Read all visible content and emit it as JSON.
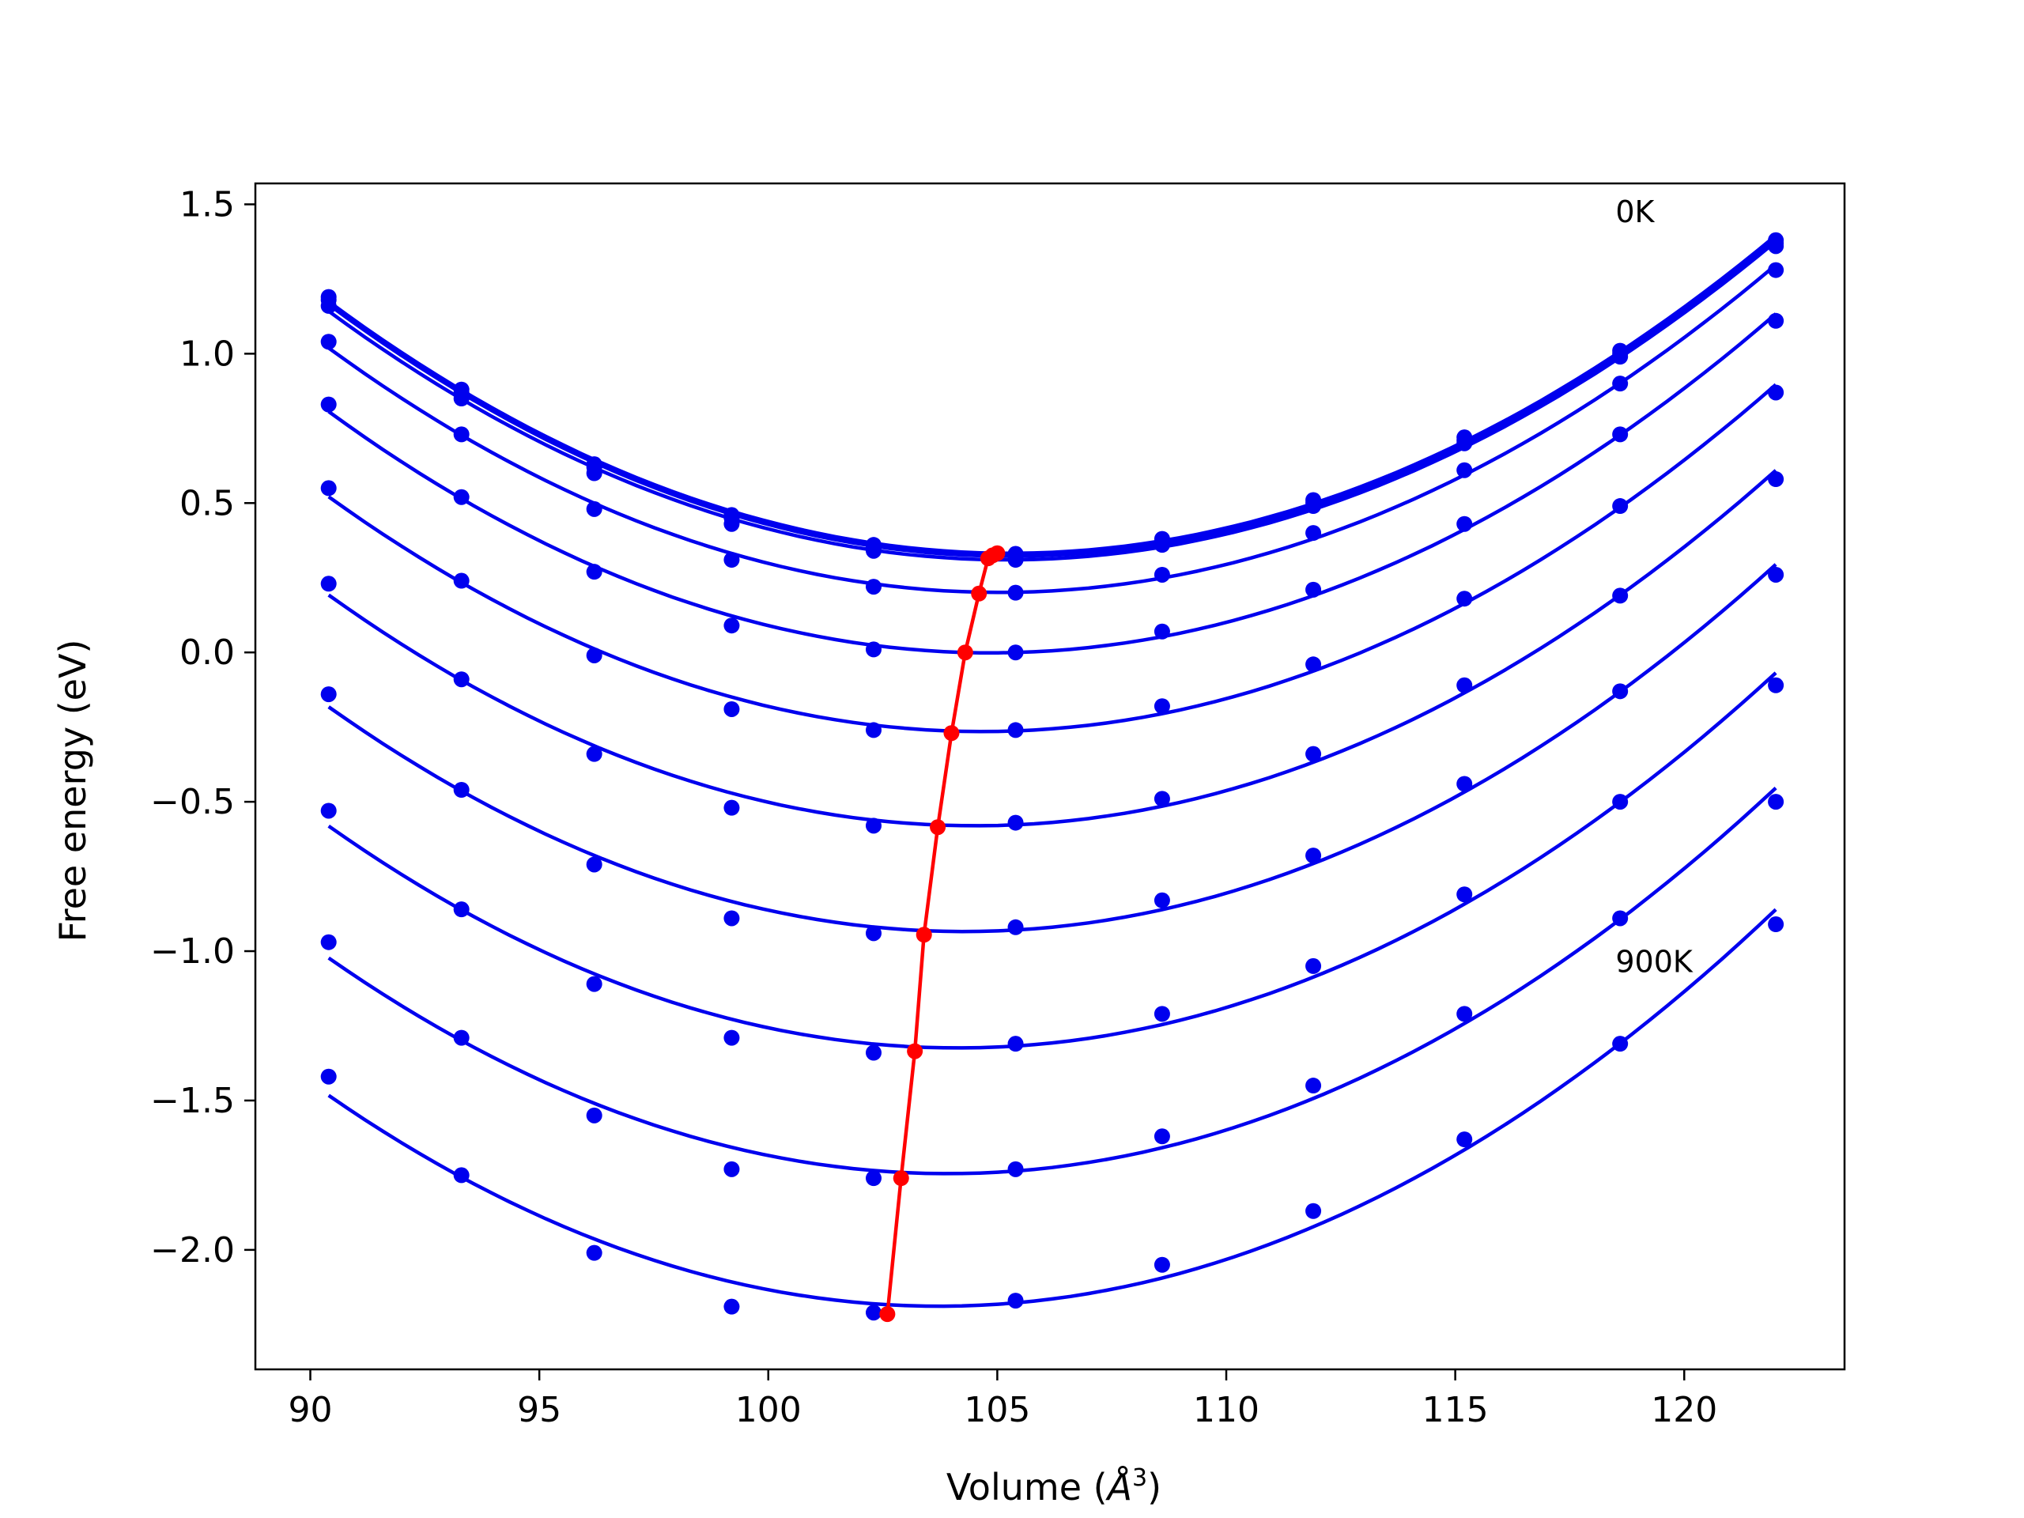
{
  "chart_data": {
    "type": "line",
    "xlabel_main": "Volume (",
    "xlabel_unit": "Å",
    "xlabel_exp": "3",
    "xlabel_close": ")",
    "ylabel": "Free energy (eV)",
    "xlim": [
      88.8,
      123.5
    ],
    "ylim": [
      -2.4,
      1.57
    ],
    "xticks": [
      90,
      95,
      100,
      105,
      110,
      115,
      120
    ],
    "yticks": [
      1.5,
      1.0,
      0.5,
      0.0,
      -0.5,
      -1.0,
      -1.5,
      -2.0
    ],
    "ytick_labels": [
      "1.5",
      "1.0",
      "0.5",
      "0.0",
      "−0.5",
      "−1.0",
      "−1.5",
      "−2.0"
    ],
    "grid": false,
    "annotations": [
      {
        "text": "0K",
        "x": 118.5,
        "y": 1.44
      },
      {
        "text": "900K",
        "x": 118.5,
        "y": -1.07
      }
    ],
    "series_color": "#0000ee",
    "min_line_color": "#ff0000",
    "x": [
      90.4,
      93.3,
      96.2,
      99.2,
      102.3,
      105.4,
      108.6,
      111.9,
      115.2,
      118.6,
      122.0
    ],
    "series": [
      {
        "points": [
          1.19,
          0.88,
          0.63,
          0.46,
          0.36,
          0.33,
          0.38,
          0.51,
          0.72,
          1.01,
          1.38
        ],
        "min": [
          105.0,
          0.332
        ]
      },
      {
        "points": [
          1.18,
          0.87,
          0.62,
          0.45,
          0.35,
          0.32,
          0.37,
          0.5,
          0.71,
          1.0,
          1.37
        ],
        "min": [
          104.9,
          0.325
        ]
      },
      {
        "points": [
          1.16,
          0.85,
          0.6,
          0.43,
          0.34,
          0.31,
          0.36,
          0.49,
          0.7,
          0.99,
          1.36
        ],
        "min": [
          104.8,
          0.315
        ]
      },
      {
        "points": [
          1.04,
          0.73,
          0.48,
          0.31,
          0.22,
          0.2,
          0.26,
          0.4,
          0.61,
          0.9,
          1.28
        ],
        "min": [
          104.6,
          0.197
        ]
      },
      {
        "points": [
          0.83,
          0.52,
          0.27,
          0.09,
          0.01,
          0.0,
          0.07,
          0.21,
          0.43,
          0.73,
          1.11
        ],
        "min": [
          104.3,
          0.0
        ]
      },
      {
        "points": [
          0.55,
          0.24,
          -0.01,
          -0.19,
          -0.26,
          -0.26,
          -0.18,
          -0.04,
          0.18,
          0.49,
          0.87
        ],
        "min": [
          104.0,
          -0.27
        ]
      },
      {
        "points": [
          0.23,
          -0.09,
          -0.34,
          -0.52,
          -0.58,
          -0.57,
          -0.49,
          -0.34,
          -0.11,
          0.19,
          0.58
        ],
        "min": [
          103.7,
          -0.585
        ]
      },
      {
        "points": [
          -0.14,
          -0.46,
          -0.71,
          -0.89,
          -0.94,
          -0.92,
          -0.83,
          -0.68,
          -0.44,
          -0.13,
          0.26
        ],
        "min": [
          103.4,
          -0.945
        ]
      },
      {
        "points": [
          -0.53,
          -0.86,
          -1.11,
          -1.29,
          -1.34,
          -1.31,
          -1.21,
          -1.05,
          -0.81,
          -0.5,
          -0.11
        ],
        "min": [
          103.2,
          -1.335
        ]
      },
      {
        "points": [
          -0.97,
          -1.29,
          -1.55,
          -1.73,
          -1.76,
          -1.73,
          -1.62,
          -1.45,
          -1.21,
          -0.89,
          -0.5
        ],
        "min": [
          102.9,
          -1.76
        ]
      },
      {
        "points": [
          -1.42,
          -1.75,
          -2.01,
          -2.19,
          -2.21,
          -2.17,
          -2.05,
          -1.87,
          -1.63,
          -1.31,
          -0.91
        ],
        "min": [
          102.6,
          -2.215
        ]
      }
    ]
  }
}
